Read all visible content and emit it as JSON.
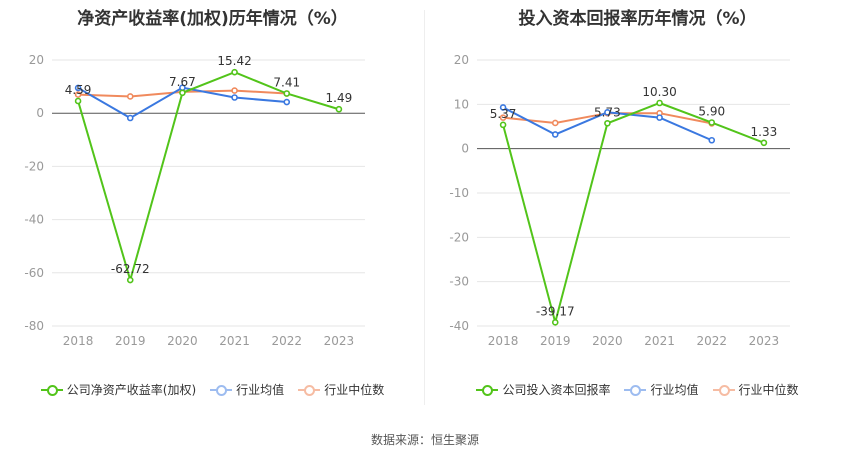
{
  "charts": [
    {
      "title": "净资产收益率(加权)历年情况（%）",
      "legend": [
        "公司净资产收益率(加权)",
        "行业均值",
        "行业中位数"
      ]
    },
    {
      "title": "投入资本回报率历年情况（%）",
      "legend": [
        "公司投入资本回报率",
        "行业均值",
        "行业中位数"
      ]
    }
  ],
  "colors": {
    "company": "#52c41a",
    "avg": "#3a78e0",
    "median": "#f08a5d"
  },
  "source": "数据来源：恒生聚源",
  "chart_data": [
    {
      "type": "line",
      "title": "净资产收益率(加权)历年情况（%）",
      "categories": [
        "2018",
        "2019",
        "2020",
        "2021",
        "2022",
        "2023"
      ],
      "ylim": [
        -80,
        20
      ],
      "yticks": [
        20,
        0,
        -20,
        -40,
        -60,
        -80
      ],
      "grid": true,
      "legend_position": "bottom",
      "series": [
        {
          "name": "公司净资产收益率(加权)",
          "values": [
            4.59,
            -62.72,
            7.67,
            15.42,
            7.41,
            1.49
          ],
          "labels": [
            "4.59",
            "-62.72",
            "7.67",
            "15.42",
            "7.41",
            "1.49"
          ]
        },
        {
          "name": "行业均值",
          "values": [
            9.5,
            -1.8,
            9.6,
            5.9,
            4.2,
            null
          ]
        },
        {
          "name": "行业中位数",
          "values": [
            7.0,
            6.3,
            8.0,
            8.5,
            7.4,
            null
          ]
        }
      ]
    },
    {
      "type": "line",
      "title": "投入资本回报率历年情况（%）",
      "categories": [
        "2018",
        "2019",
        "2020",
        "2021",
        "2022",
        "2023"
      ],
      "ylim": [
        -40,
        20
      ],
      "yticks": [
        20,
        10,
        0,
        -10,
        -20,
        -30,
        -40
      ],
      "grid": true,
      "legend_position": "bottom",
      "series": [
        {
          "name": "公司投入资本回报率",
          "values": [
            5.37,
            -39.17,
            5.73,
            10.3,
            5.9,
            1.33
          ],
          "labels": [
            "5.37",
            "-39.17",
            "5.73",
            "10.30",
            "5.90",
            "1.33"
          ]
        },
        {
          "name": "行业均值",
          "values": [
            9.3,
            3.2,
            8.2,
            7.0,
            1.9,
            null
          ]
        },
        {
          "name": "行业中位数",
          "values": [
            7.0,
            5.8,
            8.0,
            8.0,
            5.7,
            null
          ]
        }
      ]
    }
  ]
}
